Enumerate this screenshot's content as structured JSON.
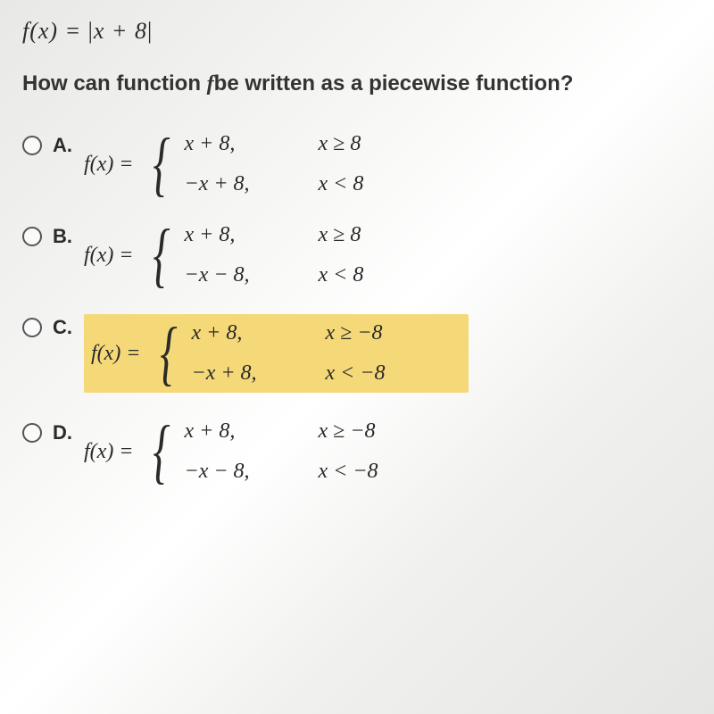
{
  "header_equation": {
    "lhs": "f(x)",
    "equals": " = ",
    "open_bar": "|",
    "inner": "x + 8",
    "close_bar": "|"
  },
  "question": {
    "prefix": "How can function ",
    "f_var": "f",
    "suffix": "be written as a piecewise function?"
  },
  "options": [
    {
      "label": "A.",
      "highlighted": false,
      "fx": "f(x) =",
      "cases": [
        {
          "expr": "x + 8,",
          "cond": "x ≥ 8"
        },
        {
          "expr": "−x + 8,",
          "cond": "x < 8"
        }
      ]
    },
    {
      "label": "B.",
      "highlighted": false,
      "fx": "f(x) =",
      "cases": [
        {
          "expr": "x + 8,",
          "cond": "x ≥ 8"
        },
        {
          "expr": "−x − 8,",
          "cond": "x < 8"
        }
      ]
    },
    {
      "label": "C.",
      "highlighted": true,
      "fx": "f(x) =",
      "cases": [
        {
          "expr": "x + 8,",
          "cond": "x ≥ −8"
        },
        {
          "expr": "−x + 8,",
          "cond": "x < −8"
        }
      ]
    },
    {
      "label": "D.",
      "highlighted": false,
      "fx": "f(x) =",
      "cases": [
        {
          "expr": "x + 8,",
          "cond": "x ≥ −8"
        },
        {
          "expr": "−x − 8,",
          "cond": "x < −8"
        }
      ]
    }
  ],
  "colors": {
    "highlight": "#f5d878",
    "text": "#2a2a2a"
  }
}
